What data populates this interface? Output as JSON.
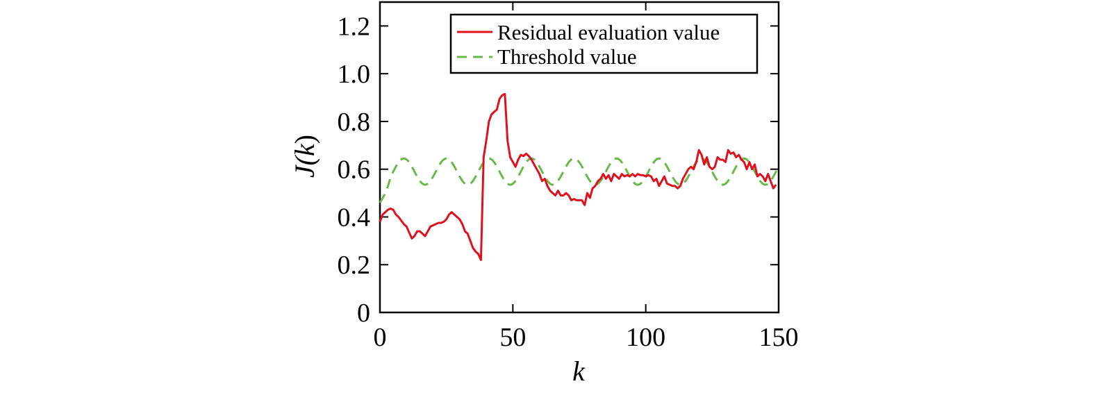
{
  "chart_data": {
    "type": "line",
    "title": "",
    "xlabel": "k",
    "ylabel_parts": {
      "prefix": "J(",
      "var": "k",
      "suffix": ")"
    },
    "xlim": [
      0,
      150
    ],
    "ylim": [
      0,
      1.3
    ],
    "xticks": [
      0,
      50,
      100,
      150
    ],
    "xtick_labels": [
      "0",
      "50",
      "100",
      "150"
    ],
    "yticks": [
      0,
      0.2,
      0.4,
      0.6,
      0.8,
      1.0,
      1.2
    ],
    "ytick_labels": [
      "0",
      "0.2",
      "0.4",
      "0.6",
      "0.8",
      "1.0",
      "1.2"
    ],
    "grid": false,
    "legend_position": "top-right",
    "series": [
      {
        "name": "Residual evaluation value",
        "color": "#e0101e",
        "style": "solid",
        "points": [
          [
            0,
            0.38
          ],
          [
            1,
            0.41
          ],
          [
            2,
            0.42
          ],
          [
            3,
            0.43
          ],
          [
            4,
            0.435
          ],
          [
            5,
            0.43
          ],
          [
            6,
            0.41
          ],
          [
            7,
            0.4
          ],
          [
            8,
            0.385
          ],
          [
            9,
            0.37
          ],
          [
            10,
            0.36
          ],
          [
            11,
            0.335
          ],
          [
            12,
            0.31
          ],
          [
            13,
            0.32
          ],
          [
            14,
            0.34
          ],
          [
            15,
            0.34
          ],
          [
            16,
            0.33
          ],
          [
            17,
            0.32
          ],
          [
            18,
            0.34
          ],
          [
            19,
            0.36
          ],
          [
            20,
            0.365
          ],
          [
            21,
            0.37
          ],
          [
            22,
            0.375
          ],
          [
            23,
            0.375
          ],
          [
            24,
            0.38
          ],
          [
            25,
            0.39
          ],
          [
            26,
            0.41
          ],
          [
            27,
            0.42
          ],
          [
            28,
            0.41
          ],
          [
            29,
            0.4
          ],
          [
            30,
            0.39
          ],
          [
            31,
            0.37
          ],
          [
            32,
            0.34
          ],
          [
            33,
            0.33
          ],
          [
            34,
            0.3
          ],
          [
            35,
            0.27
          ],
          [
            36,
            0.255
          ],
          [
            37,
            0.245
          ],
          [
            38,
            0.22
          ],
          [
            39,
            0.65
          ],
          [
            40,
            0.72
          ],
          [
            41,
            0.8
          ],
          [
            42,
            0.83
          ],
          [
            43,
            0.84
          ],
          [
            44,
            0.85
          ],
          [
            45,
            0.895
          ],
          [
            46,
            0.91
          ],
          [
            47,
            0.915
          ],
          [
            48,
            0.72
          ],
          [
            49,
            0.65
          ],
          [
            50,
            0.63
          ],
          [
            51,
            0.61
          ],
          [
            52,
            0.64
          ],
          [
            53,
            0.66
          ],
          [
            54,
            0.655
          ],
          [
            55,
            0.665
          ],
          [
            56,
            0.655
          ],
          [
            57,
            0.64
          ],
          [
            58,
            0.62
          ],
          [
            59,
            0.6
          ],
          [
            60,
            0.58
          ],
          [
            61,
            0.55
          ],
          [
            62,
            0.56
          ],
          [
            63,
            0.53
          ],
          [
            64,
            0.51
          ],
          [
            65,
            0.5
          ],
          [
            66,
            0.49
          ],
          [
            67,
            0.51
          ],
          [
            68,
            0.49
          ],
          [
            69,
            0.49
          ],
          [
            70,
            0.5
          ],
          [
            71,
            0.49
          ],
          [
            72,
            0.47
          ],
          [
            73,
            0.475
          ],
          [
            74,
            0.47
          ],
          [
            75,
            0.47
          ],
          [
            76,
            0.47
          ],
          [
            77,
            0.45
          ],
          [
            78,
            0.5
          ],
          [
            79,
            0.48
          ],
          [
            80,
            0.52
          ],
          [
            81,
            0.53
          ],
          [
            82,
            0.55
          ],
          [
            83,
            0.56
          ],
          [
            84,
            0.58
          ],
          [
            85,
            0.56
          ],
          [
            86,
            0.575
          ],
          [
            87,
            0.55
          ],
          [
            88,
            0.58
          ],
          [
            89,
            0.57
          ],
          [
            90,
            0.56
          ],
          [
            91,
            0.58
          ],
          [
            92,
            0.57
          ],
          [
            93,
            0.575
          ],
          [
            94,
            0.57
          ],
          [
            95,
            0.58
          ],
          [
            96,
            0.57
          ],
          [
            97,
            0.58
          ],
          [
            98,
            0.575
          ],
          [
            99,
            0.575
          ],
          [
            100,
            0.57
          ],
          [
            101,
            0.575
          ],
          [
            102,
            0.57
          ],
          [
            103,
            0.55
          ],
          [
            104,
            0.56
          ],
          [
            105,
            0.53
          ],
          [
            106,
            0.55
          ],
          [
            107,
            0.57
          ],
          [
            108,
            0.54
          ],
          [
            109,
            0.535
          ],
          [
            110,
            0.53
          ],
          [
            111,
            0.53
          ],
          [
            112,
            0.52
          ],
          [
            113,
            0.53
          ],
          [
            114,
            0.56
          ],
          [
            115,
            0.58
          ],
          [
            116,
            0.6
          ],
          [
            117,
            0.61
          ],
          [
            118,
            0.6
          ],
          [
            119,
            0.63
          ],
          [
            120,
            0.68
          ],
          [
            121,
            0.66
          ],
          [
            122,
            0.62
          ],
          [
            123,
            0.65
          ],
          [
            124,
            0.61
          ],
          [
            125,
            0.6
          ],
          [
            126,
            0.61
          ],
          [
            127,
            0.65
          ],
          [
            128,
            0.64
          ],
          [
            129,
            0.64
          ],
          [
            130,
            0.63
          ],
          [
            131,
            0.68
          ],
          [
            132,
            0.665
          ],
          [
            133,
            0.67
          ],
          [
            134,
            0.65
          ],
          [
            135,
            0.66
          ],
          [
            136,
            0.64
          ],
          [
            137,
            0.63
          ],
          [
            138,
            0.6
          ],
          [
            139,
            0.63
          ],
          [
            140,
            0.6
          ],
          [
            141,
            0.62
          ],
          [
            142,
            0.57
          ],
          [
            143,
            0.58
          ],
          [
            144,
            0.57
          ],
          [
            145,
            0.55
          ],
          [
            146,
            0.58
          ],
          [
            147,
            0.55
          ],
          [
            148,
            0.52
          ],
          [
            149,
            0.535
          ]
        ]
      },
      {
        "name": "Threshold value",
        "color": "#6ab84a",
        "style": "dashed",
        "model": {
          "offset": 0.59,
          "amplitude": 0.055,
          "period": 16,
          "phase_x_of_peak": 9,
          "start_value": 0.46,
          "x_step": 0.5
        }
      }
    ]
  }
}
